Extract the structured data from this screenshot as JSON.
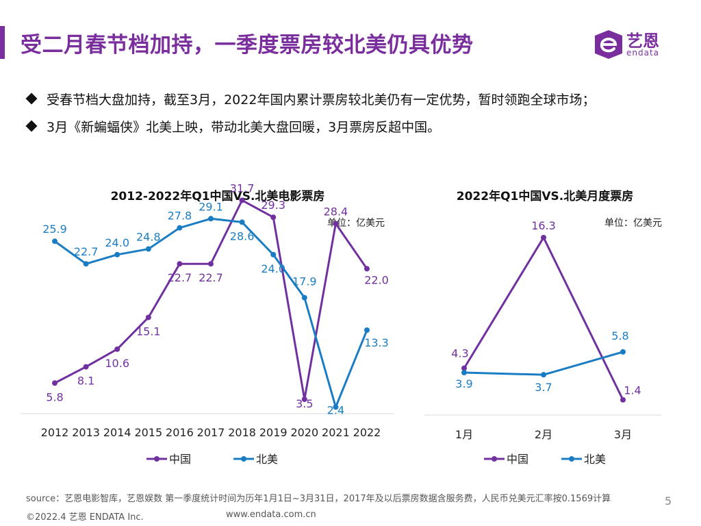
{
  "header": {
    "title": "受二月春节档加持，一季度票房较北美仍具优势",
    "logo_name": "艺恩",
    "logo_sub": "endata"
  },
  "bullets": [
    "受春节档大盘加持，截至3月，2022年国内累计票房较北美仍有一定优势，暂时领跑全球市场；",
    "3月《新蝙蝠侠》北美上映，带动北美大盘回暖，3月票房反超中国。"
  ],
  "colors": {
    "accent": "#7a2e9e",
    "china": "#7030a0",
    "na": "#1a7dc4"
  },
  "chart_data": [
    {
      "type": "line",
      "title": "2012-2022年Q1中国VS.北美电影票房",
      "unit": "单位：亿美元",
      "categories": [
        "2012",
        "2013",
        "2014",
        "2015",
        "2016",
        "2017",
        "2018",
        "2019",
        "2020",
        "2021",
        "2022"
      ],
      "series": [
        {
          "name": "中国",
          "values": [
            5.8,
            8.1,
            10.6,
            15.1,
            22.7,
            22.7,
            31.7,
            29.3,
            3.5,
            28.4,
            22.0
          ]
        },
        {
          "name": "北美",
          "values": [
            25.9,
            22.7,
            24.0,
            24.8,
            27.8,
            29.1,
            28.6,
            24.0,
            17.9,
            2.4,
            13.3
          ]
        }
      ],
      "ylim": [
        0,
        34
      ],
      "legend": "bottom"
    },
    {
      "type": "line",
      "title": "2022年Q1中国VS.北美月度票房",
      "unit": "单位：亿美元",
      "categories": [
        "1月",
        "2月",
        "3月"
      ],
      "series": [
        {
          "name": "中国",
          "values": [
            4.3,
            16.3,
            1.4
          ]
        },
        {
          "name": "北美",
          "values": [
            3.9,
            3.7,
            5.8
          ]
        }
      ],
      "ylim": [
        0,
        18
      ],
      "legend": "bottom"
    }
  ],
  "footer": {
    "source": "source：艺恩电影智库，艺恩娱数    第一季度统计时间为历年1月1日~3月31日，2017年及以后票房数据含服务费，人民币兑美元汇率按0.1569计算",
    "copyright": "©2022.4 艺恩 ENDATA Inc.",
    "url": "www.endata.com.cn",
    "page": "5"
  }
}
